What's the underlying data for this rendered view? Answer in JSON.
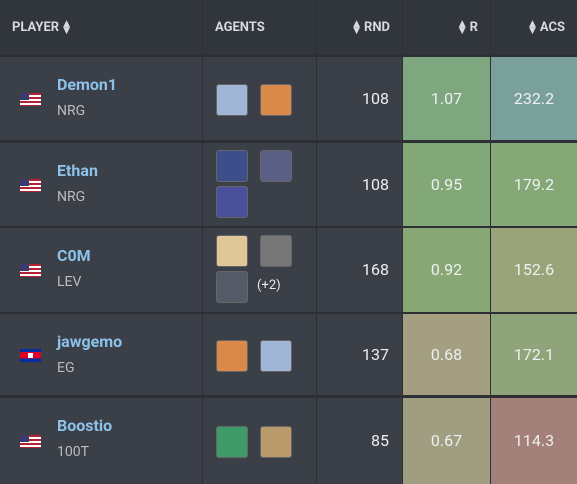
{
  "table": {
    "header": [
      "PLAYER",
      "AGENTS",
      "RND",
      "R",
      "ACS"
    ],
    "rows": [
      {
        "name": "Demon1",
        "team": "NRG",
        "rnd": "108",
        "r": "1.07",
        "acs": "232.2"
      },
      {
        "name": "Ethan",
        "team": "NRG",
        "rnd": "108",
        "r": "0.95",
        "acs": "179.2"
      },
      {
        "name": "C0M",
        "team": "LEV",
        "rnd": "168",
        "r": "0.92",
        "acs": "152.6",
        "more_agents": "(+2)"
      },
      {
        "name": "jawgemo",
        "team": "EG",
        "rnd": "137",
        "r": "0.68",
        "acs": "172.1"
      },
      {
        "name": "Boostio",
        "team": "100T",
        "rnd": "85",
        "r": "0.67",
        "acs": "114.3"
      }
    ]
  }
}
